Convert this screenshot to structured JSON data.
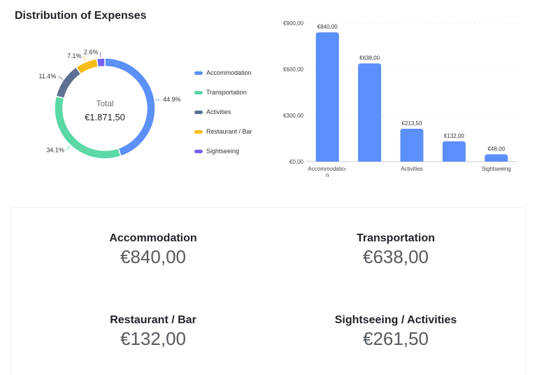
{
  "header": {
    "title": "Distribution of Expenses"
  },
  "chart_data": [
    {
      "type": "pie",
      "variant": "donut",
      "center_label": "Total",
      "center_value": "€1.871,50",
      "categories": [
        "Accommodation",
        "Transportation",
        "Activities",
        "Restaurant / Bar",
        "Sightseeing"
      ],
      "values": [
        44.9,
        34.1,
        11.4,
        7.1,
        2.6
      ],
      "value_labels": [
        "44.9%",
        "34.1%",
        "11.4%",
        "7.1%",
        "2.6%"
      ],
      "colors": [
        "#5B8FF9",
        "#5AD8A6",
        "#5D7092",
        "#F6BD16",
        "#7262FD"
      ],
      "legend": "right"
    },
    {
      "type": "bar",
      "categories": [
        "Accommodation",
        "Transportation",
        "Activities",
        "Restaurant / Bar",
        "Sightseeing"
      ],
      "tick_labels": [
        "Accommodatio-\nn",
        "",
        "Activities",
        "",
        "Sightseeing"
      ],
      "values": [
        840,
        638,
        213.5,
        132,
        48
      ],
      "value_labels": [
        "€840,00",
        "€638,00",
        "€213,50",
        "€132,00",
        "€48,00"
      ],
      "ylim": [
        0,
        900
      ],
      "y_ticks": [
        0,
        300,
        600,
        900
      ],
      "y_tick_labels": [
        "€0,00",
        "€300,00",
        "€600,00",
        "€900,00"
      ],
      "color": "#5B8FF9",
      "grid": true
    }
  ],
  "summary": [
    {
      "label": "Accommodation",
      "value": "€840,00"
    },
    {
      "label": "Transportation",
      "value": "€638,00"
    },
    {
      "label": "Restaurant / Bar",
      "value": "€132,00"
    },
    {
      "label": "Sightseeing / Activities",
      "value": "€261,50"
    }
  ]
}
